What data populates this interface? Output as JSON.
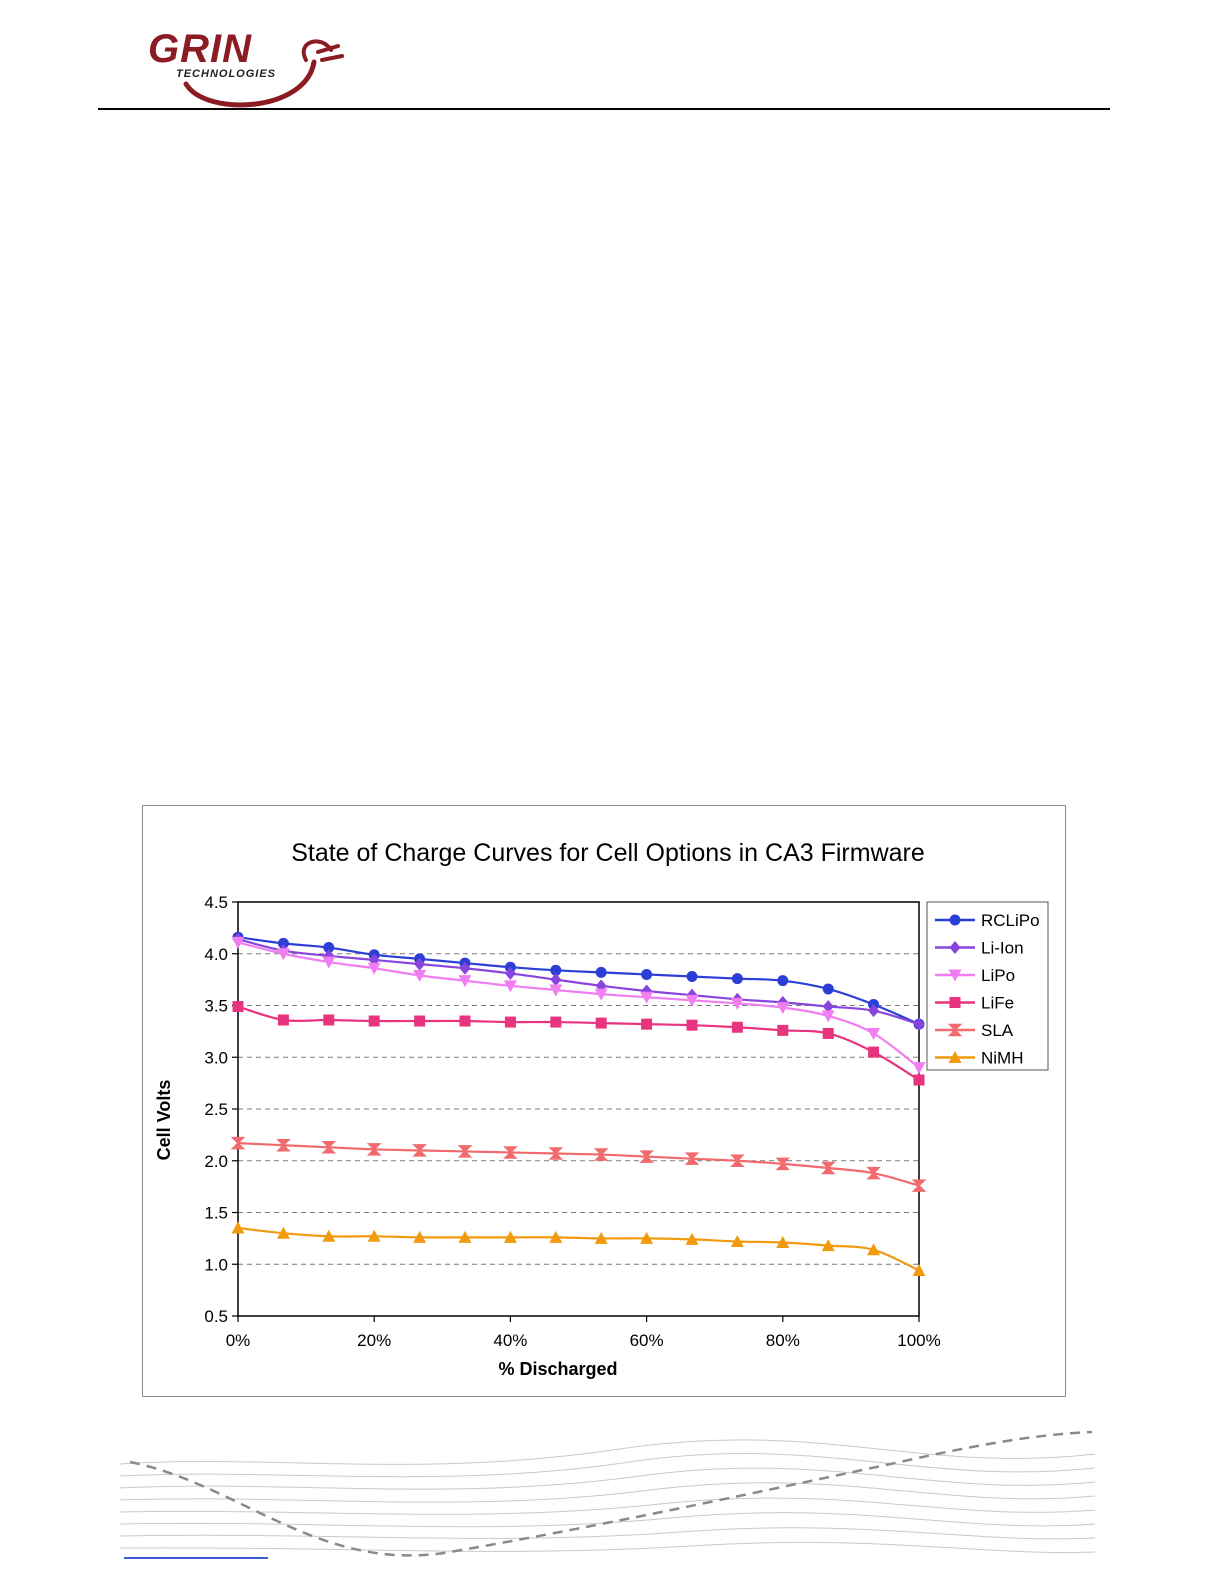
{
  "header": {
    "logo_word": "GRIN",
    "logo_sub": "TECHNOLOGIES"
  },
  "colors": {
    "brand": "#8b1c24",
    "series": {
      "RCLiPo": "#2b3fd6",
      "Li-Ion": "#8a44de",
      "LiPo": "#f07ef0",
      "LiFe": "#e8337e",
      "SLA": "#f06a6e",
      "NiMH": "#f29a0d"
    }
  },
  "chart_data": {
    "type": "line",
    "title": "State of Charge Curves for Cell Options in CA3 Firmware",
    "xlabel": "% Discharged",
    "ylabel": "Cell Volts",
    "xlim": [
      0,
      100
    ],
    "ylim": [
      0.5,
      4.5
    ],
    "xticks": [
      0,
      20,
      40,
      60,
      80,
      100
    ],
    "xtick_labels": [
      "0%",
      "20%",
      "40%",
      "60%",
      "80%",
      "100%"
    ],
    "yticks": [
      0.5,
      1.0,
      1.5,
      2.0,
      2.5,
      3.0,
      3.5,
      4.0,
      4.5
    ],
    "ytick_labels": [
      "0.5",
      "1.0",
      "1.5",
      "2.0",
      "2.5",
      "3.0",
      "3.5",
      "4.0",
      "4.5"
    ],
    "grid": "horizontal dashed",
    "legend_position": "right",
    "x": [
      0,
      6.67,
      13.33,
      20,
      26.67,
      33.33,
      40,
      46.67,
      53.33,
      60,
      66.67,
      73.33,
      80,
      86.67,
      93.33,
      100
    ],
    "series": [
      {
        "name": "RCLiPo",
        "marker": "circle",
        "values": [
          4.16,
          4.1,
          4.06,
          3.99,
          3.95,
          3.91,
          3.87,
          3.84,
          3.82,
          3.8,
          3.78,
          3.76,
          3.74,
          3.66,
          3.51,
          3.32
        ]
      },
      {
        "name": "Li-Ion",
        "marker": "diamond",
        "values": [
          4.14,
          4.03,
          3.98,
          3.94,
          3.9,
          3.86,
          3.81,
          3.75,
          3.69,
          3.64,
          3.6,
          3.56,
          3.53,
          3.49,
          3.45,
          3.32
        ]
      },
      {
        "name": "LiPo",
        "marker": "triangle-down",
        "values": [
          4.11,
          4.0,
          3.92,
          3.86,
          3.79,
          3.74,
          3.69,
          3.65,
          3.61,
          3.58,
          3.55,
          3.52,
          3.48,
          3.4,
          3.23,
          2.9
        ]
      },
      {
        "name": "LiFe",
        "marker": "square",
        "values": [
          3.49,
          3.36,
          3.36,
          3.35,
          3.35,
          3.35,
          3.34,
          3.34,
          3.33,
          3.32,
          3.31,
          3.29,
          3.26,
          3.23,
          3.05,
          2.78
        ]
      },
      {
        "name": "SLA",
        "marker": "hourglass",
        "values": [
          2.17,
          2.15,
          2.13,
          2.11,
          2.1,
          2.09,
          2.08,
          2.07,
          2.06,
          2.04,
          2.02,
          2.0,
          1.97,
          1.93,
          1.88,
          1.76
        ]
      },
      {
        "name": "NiMH",
        "marker": "triangle-up",
        "values": [
          1.35,
          1.3,
          1.27,
          1.27,
          1.26,
          1.26,
          1.26,
          1.26,
          1.25,
          1.25,
          1.24,
          1.22,
          1.21,
          1.18,
          1.14,
          0.94
        ]
      }
    ]
  }
}
